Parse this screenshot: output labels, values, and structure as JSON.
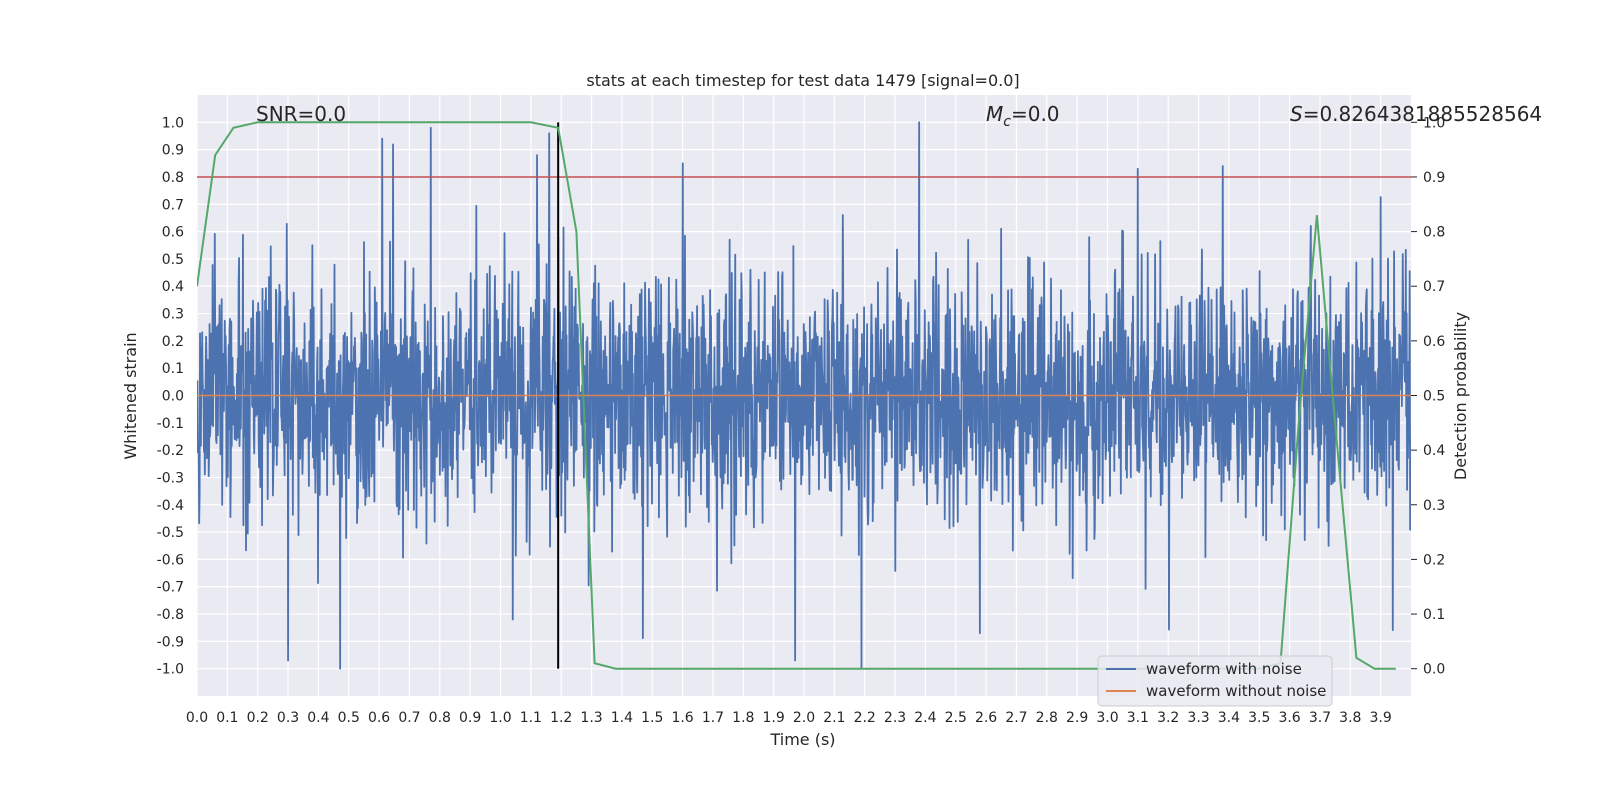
{
  "chart_data": {
    "type": "line",
    "title": "stats at each timestep for test data 1479 [signal=0.0]",
    "xlabel": "Time (s)",
    "ylabel": "Whitened strain",
    "y2label": "Detection probability",
    "xlim": [
      0.0,
      4.0
    ],
    "ylim": [
      -1.1,
      1.1
    ],
    "y2lim": [
      -0.05,
      1.05
    ],
    "x_ticks": [
      "0.0",
      "0.1",
      "0.2",
      "0.3",
      "0.4",
      "0.5",
      "0.6",
      "0.7",
      "0.8",
      "0.9",
      "1.0",
      "1.1",
      "1.2",
      "1.3",
      "1.4",
      "1.5",
      "1.6",
      "1.7",
      "1.8",
      "1.9",
      "2.0",
      "2.1",
      "2.2",
      "2.3",
      "2.4",
      "2.5",
      "2.6",
      "2.7",
      "2.8",
      "2.9",
      "3.0",
      "3.1",
      "3.2",
      "3.3",
      "3.4",
      "3.5",
      "3.6",
      "3.7",
      "3.8",
      "3.9"
    ],
    "y_ticks": [
      "1.0",
      "0.9",
      "0.8",
      "0.7",
      "0.6",
      "0.5",
      "0.4",
      "0.3",
      "0.2",
      "0.1",
      "0.0",
      "-0.1",
      "-0.2",
      "-0.3",
      "-0.4",
      "-0.5",
      "-0.6",
      "-0.7",
      "-0.8",
      "-0.9",
      "-1.0"
    ],
    "y2_ticks": [
      "1.0",
      "0.9",
      "0.8",
      "0.7",
      "0.6",
      "0.5",
      "0.4",
      "0.3",
      "0.2",
      "0.1",
      "0.0"
    ],
    "grid": true,
    "legend_position": "lower-right",
    "annotations": {
      "snr": "SNR=0.0",
      "mc_symbol": "M",
      "mc_subscript": "c",
      "mc_value": "=0.0",
      "s_symbol": "S",
      "s_value": "=0.8264381885528564"
    },
    "series": [
      {
        "name": "waveform with noise",
        "color": "#4c72b0",
        "axis": "left",
        "kind": "noise",
        "t_range": [
          0.0,
          4.0
        ],
        "amplitude_range": [
          -1.0,
          1.0
        ],
        "peak_points": [
          [
            0.38,
            0.55
          ],
          [
            0.61,
            0.94
          ],
          [
            0.77,
            0.98
          ],
          [
            1.12,
            0.88
          ],
          [
            1.16,
            0.96
          ],
          [
            1.6,
            0.85
          ],
          [
            2.38,
            1.0
          ],
          [
            3.1,
            0.83
          ],
          [
            3.38,
            0.84
          ],
          [
            0.3,
            -0.97
          ],
          [
            1.04,
            -0.82
          ],
          [
            1.97,
            -0.97
          ],
          [
            2.19,
            -1.0
          ],
          [
            2.58,
            -0.87
          ]
        ]
      },
      {
        "name": "waveform without noise",
        "color": "#dd8452",
        "axis": "left",
        "x": [
          0.0,
          4.0
        ],
        "y": [
          0.0,
          0.0
        ]
      },
      {
        "name": "detection probability",
        "color": "#55a868",
        "axis": "right",
        "x": [
          0.0,
          0.06,
          0.12,
          0.2,
          0.3,
          0.5,
          0.8,
          1.0,
          1.1,
          1.19,
          1.25,
          1.31,
          1.38,
          1.5,
          2.0,
          2.5,
          3.0,
          3.3,
          3.5,
          3.57,
          3.63,
          3.69,
          3.75,
          3.82,
          3.88,
          3.95
        ],
        "y": [
          0.7,
          0.94,
          0.99,
          1.0,
          1.0,
          1.0,
          1.0,
          1.0,
          1.0,
          0.99,
          0.8,
          0.01,
          0.0,
          0.0,
          0.0,
          0.0,
          0.0,
          0.0,
          0.0,
          0.01,
          0.45,
          0.83,
          0.45,
          0.02,
          0.0,
          0.0
        ]
      }
    ],
    "threshold": {
      "color": "#c44e52",
      "axis": "right",
      "y": 0.9
    },
    "marker": {
      "color": "#000000",
      "x": 1.19,
      "y_range": [
        -1.0,
        1.0
      ]
    }
  }
}
